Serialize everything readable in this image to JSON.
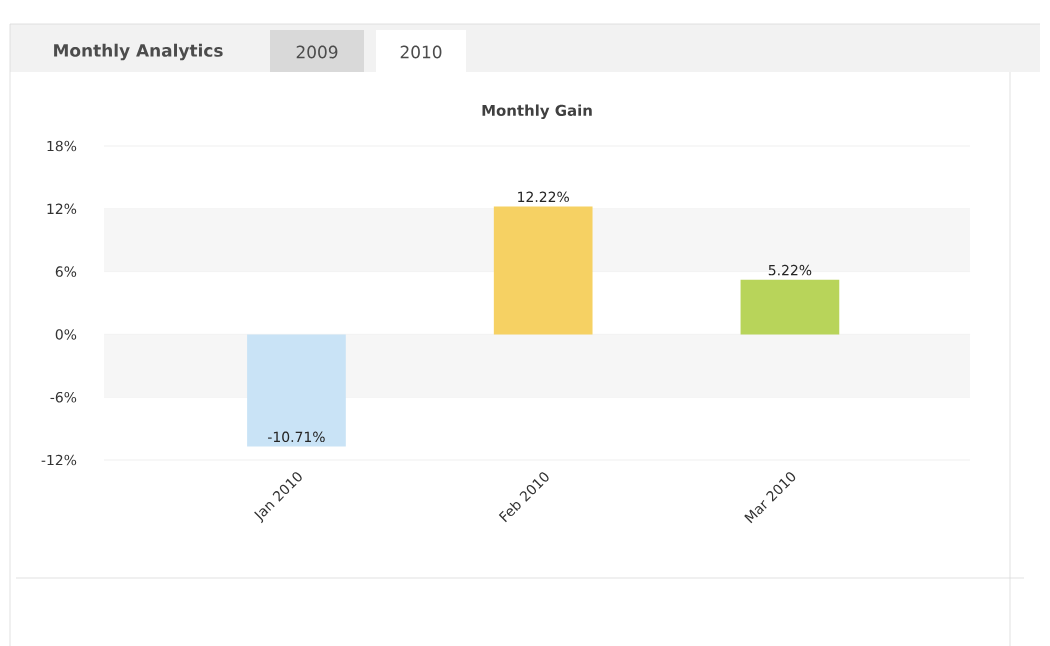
{
  "chart_data": {
    "type": "bar",
    "title": "Monthly Gain",
    "categories": [
      "Jan 2010",
      "Feb 2010",
      "Mar 2010"
    ],
    "values": [
      -10.71,
      12.22,
      5.22
    ],
    "colors": [
      "#c9e3f6",
      "#f6d163",
      "#b8d45a"
    ],
    "value_labels": [
      "-10.71%",
      "12.22%",
      "5.22%"
    ],
    "ylim": [
      -12,
      18
    ],
    "yticks": [
      {
        "value": -12,
        "label": "-12%"
      },
      {
        "value": -6,
        "label": "-6%"
      },
      {
        "value": 0,
        "label": "0%"
      },
      {
        "value": 6,
        "label": "6%"
      },
      {
        "value": 12,
        "label": "12%"
      },
      {
        "value": 18,
        "label": "18%"
      }
    ],
    "grid": "y",
    "bands": [
      {
        "axis": "y",
        "from": 6,
        "to": 12,
        "color": "#f6f6f6"
      },
      {
        "axis": "y",
        "from": -6,
        "to": 0,
        "color": "#f6f6f6"
      }
    ],
    "annotations": [
      "Monthly Analytics",
      "2009",
      "2010"
    ]
  }
}
